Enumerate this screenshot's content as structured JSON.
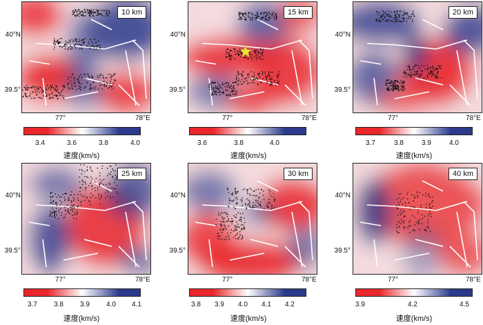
{
  "panels": [
    {
      "depth": "10 km",
      "lat_top": "40°N",
      "lat_bottom": "39.5°",
      "lon_left": "77°",
      "lon_right": "78°E",
      "cbar_ticks": [
        "3.4",
        "3.6",
        "3.8",
        "4.0"
      ],
      "cbar_label": "速度(km/s)"
    },
    {
      "depth": "15 km",
      "lat_top": "40°N",
      "lat_bottom": "39.5°",
      "lon_left": "77°",
      "lon_right": "78°E",
      "cbar_ticks": [
        "3.6",
        "3.8",
        "4.0"
      ],
      "cbar_label": "速度(km/s)",
      "star": true
    },
    {
      "depth": "20 km",
      "lat_top": "40°N",
      "lat_bottom": "39.5°",
      "lon_left": "77°",
      "lon_right": "78°E",
      "cbar_ticks": [
        "3.7",
        "3.8",
        "3.9",
        "4.0"
      ],
      "cbar_label": "速度(km/s)"
    },
    {
      "depth": "25 km",
      "lat_top": "40°N",
      "lat_bottom": "39.5°",
      "lon_left": "77°",
      "lon_right": "78°E",
      "cbar_ticks": [
        "3.7",
        "3.8",
        "3.9",
        "4.0",
        "4.1"
      ],
      "cbar_label": "速度(km/s)"
    },
    {
      "depth": "30 km",
      "lat_top": "40°N",
      "lat_bottom": "39.5°",
      "lon_left": "77°",
      "lon_right": "78°E",
      "cbar_ticks": [
        "3.8",
        "3.9",
        "4.0",
        "4.1",
        "4.2"
      ],
      "cbar_label": "速度(km/s)"
    },
    {
      "depth": "40 km",
      "lat_top": "40°N",
      "lat_bottom": "39.5°",
      "lon_left": "77°",
      "lon_right": "78°E",
      "cbar_ticks": [
        "3.9",
        "4.2",
        "4.5"
      ],
      "cbar_label": "速度(km/s)"
    }
  ],
  "colors": {
    "slow": "#e8262b",
    "neutral": "#ffffff",
    "fast": "#2c3a8c",
    "fault": "#ffffff",
    "quake": "#111111",
    "star": "#f4e23a"
  }
}
